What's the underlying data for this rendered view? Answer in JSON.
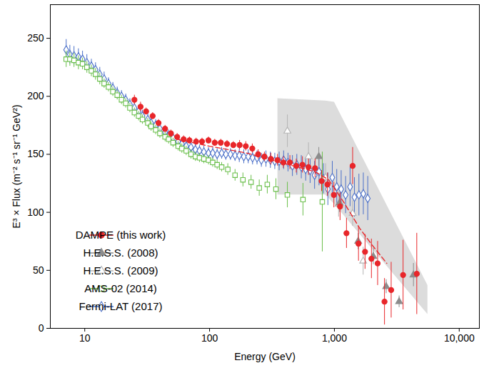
{
  "chart_data": {
    "type": "scatter",
    "x_label": "Energy (GeV)",
    "y_label": "E³ × Flux (m⁻² s⁻¹ sr⁻¹ GeV²)",
    "log": "x",
    "grid": false,
    "legend": "lower left",
    "xlim": [
      5.3,
      14500
    ],
    "xticks": [
      10,
      100,
      {
        "value": 1000,
        "label": "1,000"
      },
      {
        "value": 10000,
        "label": "10,000"
      }
    ],
    "ylim": [
      0,
      279
    ],
    "yticks": [
      0,
      50,
      100,
      150,
      200,
      250
    ],
    "band": {
      "color": "#dcdcdc",
      "x": [
        352,
        850,
        1000,
        5600
      ],
      "lower": [
        115,
        115,
        107,
        12
      ],
      "upper": [
        198,
        196,
        195,
        37
      ]
    },
    "fit": {
      "color": "#e8262a",
      "line_style": "dashed",
      "x": [
        55,
        100,
        200,
        400,
        700,
        900,
        1200,
        1600,
        2000,
        2630
      ],
      "values": [
        163,
        157,
        151,
        142,
        135,
        128,
        108,
        86,
        72,
        56
      ]
    },
    "series": [
      {
        "name": "Fermi-LAT (2017)",
        "color": "#4a6fc8",
        "marker": "diamond-open",
        "x": [
          7.1,
          7.6,
          8.2,
          8.9,
          9.6,
          10.4,
          11.3,
          12.2,
          13.2,
          14.3,
          15.5,
          16.8,
          18.2,
          19.7,
          21.3,
          23,
          25,
          27,
          29,
          32,
          34,
          37,
          40,
          44,
          47,
          51,
          56,
          60,
          65,
          71,
          77,
          83,
          90,
          98,
          106,
          115,
          125,
          135,
          147,
          160,
          173,
          188,
          204,
          221,
          240,
          260,
          283,
          307,
          333,
          361,
          392,
          425,
          461,
          500,
          543,
          589,
          639,
          694,
          753,
          817,
          887,
          962,
          1044,
          1133,
          1230,
          1335,
          1448,
          1572,
          1705,
          1850
        ],
        "values": [
          240,
          236,
          235,
          234,
          232,
          229,
          226,
          223,
          219,
          215,
          211,
          207,
          203,
          200,
          197,
          193,
          190,
          187,
          183,
          180,
          177,
          175,
          172,
          169,
          166,
          164,
          161,
          159,
          157,
          156,
          154,
          153,
          152,
          151,
          151,
          150,
          151,
          150,
          150,
          149,
          149,
          148,
          148,
          147,
          147,
          145,
          146,
          145,
          144,
          144,
          145,
          143,
          140,
          141,
          139,
          137,
          136,
          132,
          135,
          129,
          120,
          130,
          122,
          120,
          115,
          122,
          113,
          115,
          116,
          112
        ],
        "errors": [
          9,
          8,
          8,
          7,
          7,
          7,
          6,
          6,
          6,
          6,
          5,
          5,
          5,
          5,
          5,
          5,
          5,
          5,
          5,
          5,
          5,
          5,
          5,
          5,
          5,
          5,
          5,
          5,
          5,
          5,
          5,
          5,
          5,
          5,
          5,
          5,
          5,
          5,
          5,
          5,
          6,
          6,
          6,
          6,
          6,
          6,
          7,
          7,
          7,
          8,
          8,
          8,
          9,
          9,
          10,
          10,
          11,
          12,
          12,
          13,
          14,
          14,
          15,
          16,
          16,
          17,
          17,
          18,
          18,
          19
        ]
      },
      {
        "name": "AMS-02 (2014)",
        "color": "#6abf4b",
        "marker": "square-open",
        "x": [
          7.1,
          7.6,
          8.2,
          8.9,
          9.6,
          10.4,
          11.3,
          12.2,
          13.2,
          14.3,
          15.5,
          16.8,
          18.2,
          19.7,
          21.3,
          23,
          25,
          27,
          29,
          32,
          34,
          37,
          40,
          44,
          47,
          51,
          56,
          60,
          65,
          71,
          77,
          83,
          90,
          98,
          106,
          115,
          125,
          140,
          160,
          185,
          215,
          250,
          290,
          340,
          420,
          560,
          800
        ],
        "values": [
          232,
          232,
          231,
          229,
          228,
          225,
          222,
          219,
          215,
          211,
          208,
          204,
          201,
          197,
          194,
          190,
          186,
          183,
          180,
          177,
          174,
          171,
          168,
          165,
          163,
          160,
          157,
          155,
          153,
          150,
          148,
          147,
          146,
          145,
          143,
          141,
          139,
          137,
          132,
          128,
          126,
          121,
          124,
          120,
          115,
          111,
          109
        ],
        "errors": [
          7,
          6,
          6,
          6,
          5,
          5,
          5,
          5,
          5,
          4,
          4,
          4,
          4,
          4,
          4,
          4,
          4,
          4,
          4,
          4,
          4,
          4,
          4,
          4,
          4,
          4,
          4,
          4,
          4,
          4,
          4,
          4,
          4,
          4,
          4,
          4,
          4,
          5,
          5,
          6,
          6,
          7,
          8,
          9,
          11,
          14,
          43
        ]
      },
      {
        "name": "H.E.S.S. (2009)",
        "color": "#b4b4b4",
        "marker": "triangle-open",
        "x": [
          420,
          620,
          850,
          1080,
          1400,
          1700
        ],
        "values": [
          170,
          148,
          130,
          107,
          99,
          58
        ],
        "errors": [
          14,
          12,
          12,
          11,
          11,
          12
        ]
      },
      {
        "name": "H.E.S.S. (2008)",
        "color": "#8c8c8c",
        "marker": "triangle",
        "x": [
          750,
          1100,
          1550,
          2050,
          2600,
          3300,
          4300
        ],
        "values": [
          148,
          108,
          75,
          62,
          36,
          23,
          46
        ],
        "errors": [
          8,
          8,
          7,
          7,
          6,
          5,
          10
        ]
      },
      {
        "name": "DAMPE (this work)",
        "color": "#e8262a",
        "marker": "circle",
        "x": [
          25,
          28,
          31,
          35,
          39,
          44,
          49,
          55,
          62,
          69,
          78,
          87,
          98,
          110,
          123,
          138,
          155,
          174,
          195,
          220,
          245,
          275,
          310,
          350,
          390,
          440,
          495,
          555,
          620,
          700,
          790,
          880,
          990,
          1110,
          1250,
          1400,
          1560,
          1760,
          1980,
          2220,
          2520,
          2850,
          3550,
          4570
        ],
        "values": [
          197,
          191,
          187,
          183,
          177,
          172,
          168,
          165,
          163,
          162,
          161,
          161,
          162,
          160,
          160,
          159,
          158,
          158,
          157,
          155,
          150,
          148,
          146,
          145,
          143,
          143,
          140,
          141,
          139,
          138,
          127,
          124,
          115,
          105,
          82,
          140,
          73,
          66,
          60,
          56,
          23,
          33,
          46,
          47
        ],
        "errors": [
          4,
          4,
          3,
          3,
          3,
          3,
          3,
          3,
          3,
          3,
          3,
          3,
          3,
          3,
          3,
          3,
          3,
          4,
          4,
          4,
          4,
          4,
          5,
          5,
          5,
          6,
          6,
          7,
          7,
          8,
          9,
          10,
          11,
          12,
          13,
          16,
          15,
          15,
          17,
          19,
          20,
          24,
          30,
          35
        ]
      }
    ]
  }
}
